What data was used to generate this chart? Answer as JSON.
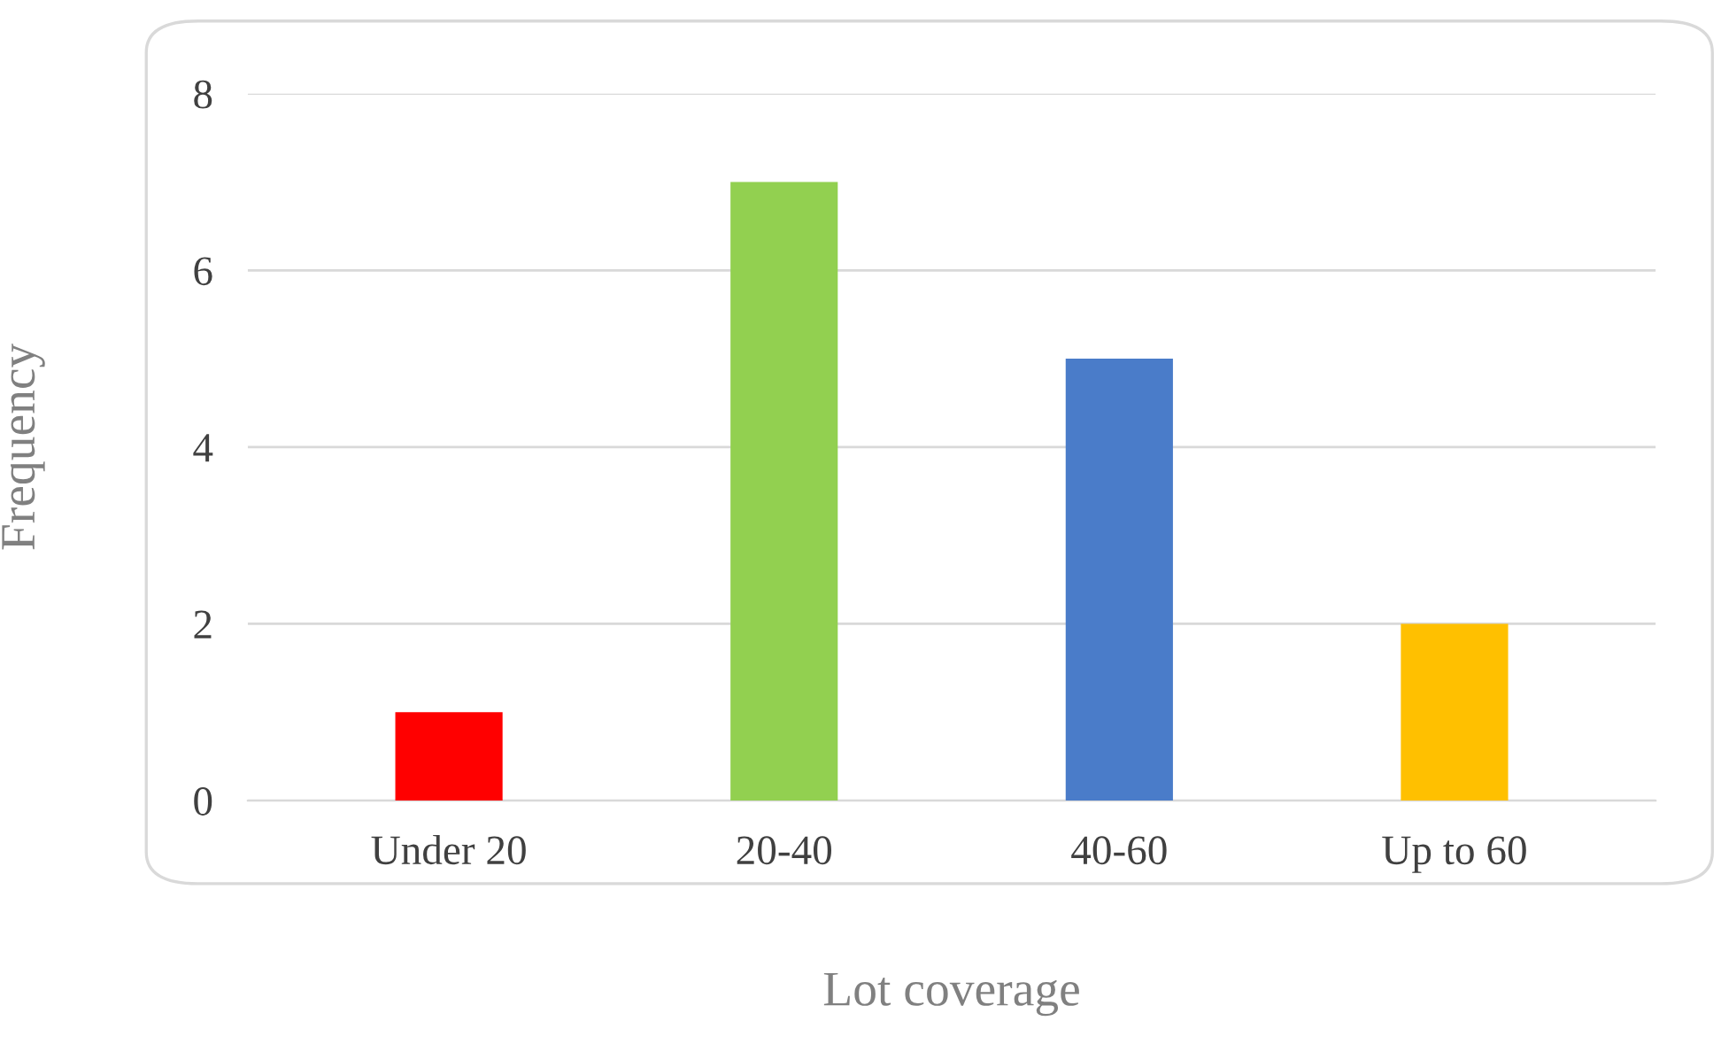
{
  "chart_data": {
    "type": "bar",
    "xlabel": "Lot coverage",
    "ylabel": "Frequency",
    "categories": [
      "Under 20",
      "20-40",
      "40-60",
      "Up to 60"
    ],
    "values": [
      1,
      7,
      5,
      2
    ],
    "colors": [
      "#ff0000",
      "#92d050",
      "#4a7cc9",
      "#ffc000"
    ],
    "ylim": [
      0,
      8
    ],
    "yticks": [
      0,
      2,
      4,
      6,
      8
    ],
    "grid": "y",
    "legend": false
  }
}
